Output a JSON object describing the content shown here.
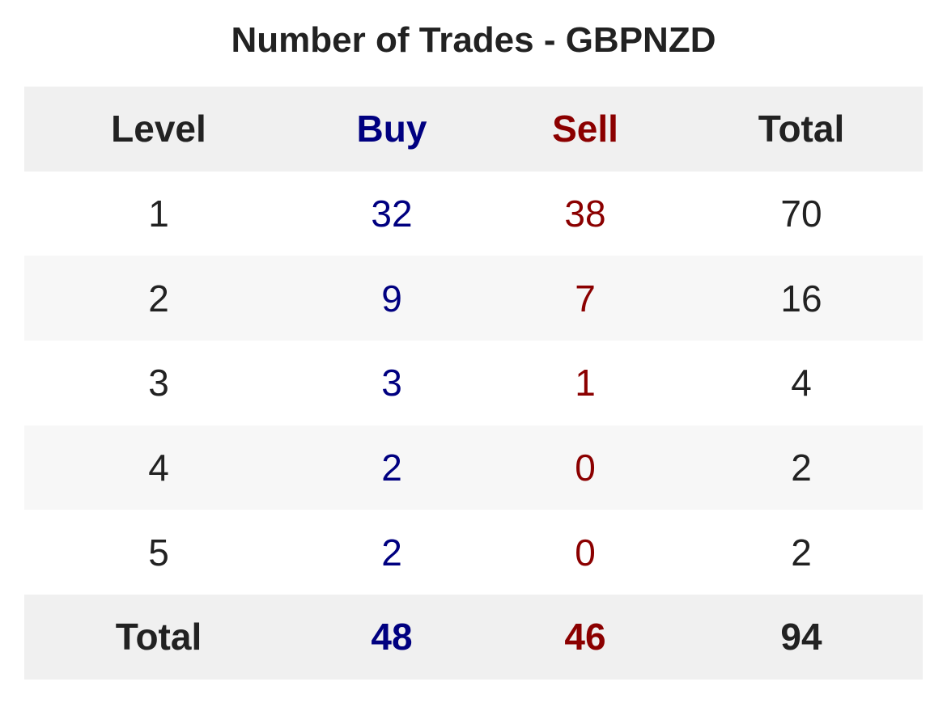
{
  "chart_data": {
    "type": "table",
    "title": "Number of Trades - GBPNZD",
    "columns": [
      "Level",
      "Buy",
      "Sell",
      "Total"
    ],
    "rows": [
      {
        "level": "1",
        "buy": "32",
        "sell": "38",
        "total": "70"
      },
      {
        "level": "2",
        "buy": "9",
        "sell": "7",
        "total": "16"
      },
      {
        "level": "3",
        "buy": "3",
        "sell": "1",
        "total": "4"
      },
      {
        "level": "4",
        "buy": "2",
        "sell": "0",
        "total": "2"
      },
      {
        "level": "5",
        "buy": "2",
        "sell": "0",
        "total": "2"
      }
    ],
    "totals": {
      "label": "Total",
      "buy": "48",
      "sell": "46",
      "total": "94"
    },
    "colors": {
      "buy": "#000080",
      "sell": "#8b0000",
      "text": "#222222",
      "header_bg": "#f0f0f0",
      "stripe_bg": "#f7f7f7"
    }
  }
}
